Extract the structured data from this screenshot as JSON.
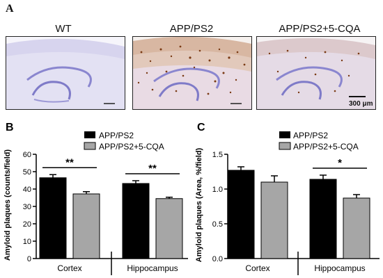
{
  "panel_a": {
    "letter": "A",
    "images": [
      {
        "title": "WT"
      },
      {
        "title": "APP/PS2"
      },
      {
        "title": "APP/PS2+5-CQA"
      }
    ],
    "scale_bar_label": "300 μm"
  },
  "colors": {
    "app_ps2": "#000000",
    "app_ps2_cqa": "#a6a6a6",
    "tissue_stain": "#c9c5e6",
    "plaque_stain": "#8a4a1e"
  },
  "chart_data": [
    {
      "letter": "B",
      "type": "bar",
      "categories": [
        "Cortex",
        "Hippocampus"
      ],
      "series": [
        {
          "name": "APP/PS2",
          "values": [
            46.5,
            43.2
          ],
          "errors": [
            1.8,
            1.6
          ]
        },
        {
          "name": "APP/PS2+5-CQA",
          "values": [
            37.2,
            34.5
          ],
          "errors": [
            1.3,
            0.8
          ]
        }
      ],
      "ylabel": "Amyloid plaques (counts/field)",
      "ylim": [
        0,
        60
      ],
      "yticks": [
        "0",
        "10",
        "20",
        "30",
        "40",
        "50",
        "60"
      ],
      "significance": [
        "**",
        "**"
      ],
      "legend": "top-left"
    },
    {
      "letter": "C",
      "type": "bar",
      "categories": [
        "Cortex",
        "Hippocampus"
      ],
      "series": [
        {
          "name": "APP/PS2",
          "values": [
            1.27,
            1.14
          ],
          "errors": [
            0.05,
            0.06
          ]
        },
        {
          "name": "APP/PS2+5-CQA",
          "values": [
            1.1,
            0.87
          ],
          "errors": [
            0.09,
            0.05
          ]
        }
      ],
      "ylabel": "Amyloid plaques (Area, %/field)",
      "ylim": [
        0,
        1.5
      ],
      "yticks": [
        "0.0",
        "0.5",
        "1.0",
        "1.5"
      ],
      "significance": [
        "",
        "*"
      ],
      "legend": "top-left"
    }
  ]
}
